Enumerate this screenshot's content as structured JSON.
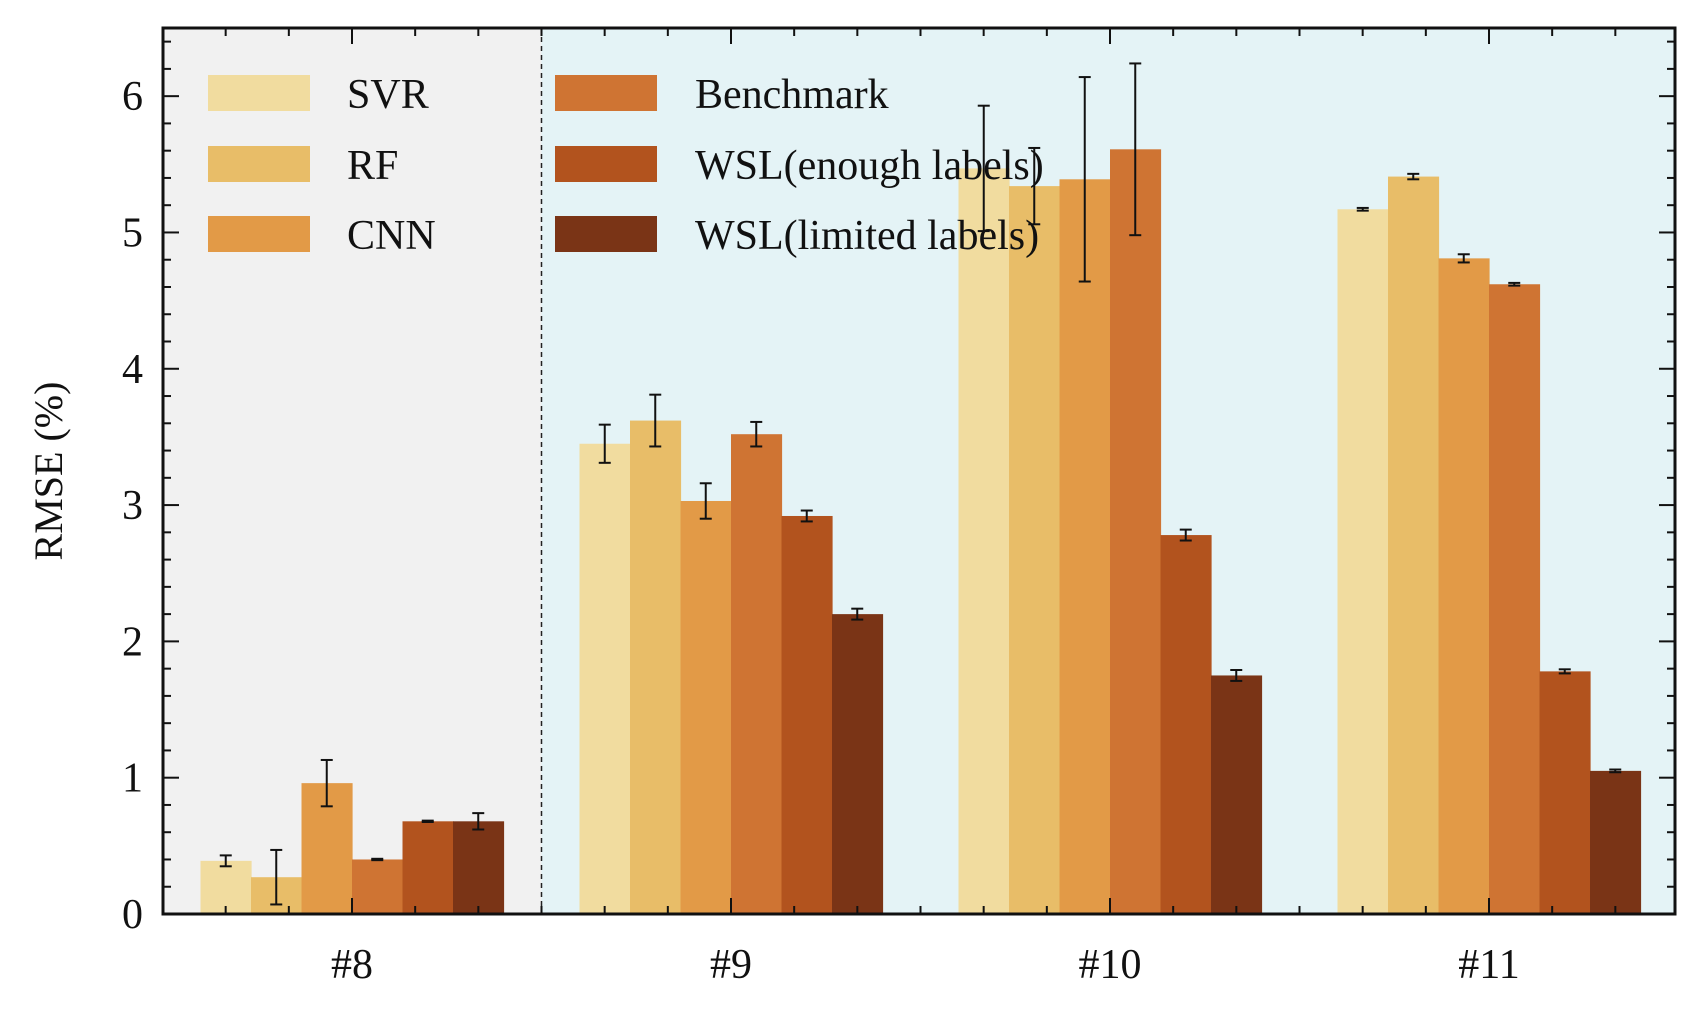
{
  "chart_data": {
    "type": "bar",
    "ylabel": "RMSE (%)",
    "ylim": [
      0,
      6.5
    ],
    "yticks": [
      "0",
      "1",
      "2",
      "3",
      "4",
      "5",
      "6"
    ],
    "categories": [
      "#8",
      "#9",
      "#10",
      "#11"
    ],
    "series": [
      {
        "name": "SVR",
        "color": "#f1dc9f",
        "values": [
          0.39,
          3.45,
          5.47,
          5.17
        ],
        "errors": [
          0.04,
          0.14,
          0.46,
          0.01
        ]
      },
      {
        "name": "RF",
        "color": "#e8bd68",
        "values": [
          0.27,
          3.62,
          5.34,
          5.41
        ],
        "errors": [
          0.2,
          0.19,
          0.28,
          0.02
        ]
      },
      {
        "name": "CNN",
        "color": "#e29a47",
        "values": [
          0.96,
          3.03,
          5.39,
          4.81
        ],
        "errors": [
          0.17,
          0.13,
          0.75,
          0.03
        ]
      },
      {
        "name": "Benchmark",
        "color": "#cf7433",
        "values": [
          0.4,
          3.52,
          5.61,
          4.62
        ],
        "errors": [
          0.005,
          0.09,
          0.63,
          0.01
        ]
      },
      {
        "name": "WSL(enough labels)",
        "color": "#b2531e",
        "values": [
          0.68,
          2.92,
          2.78,
          1.78
        ],
        "errors": [
          0.005,
          0.04,
          0.04,
          0.015
        ]
      },
      {
        "name": "WSL(limited labels)",
        "color": "#7a3416",
        "values": [
          0.68,
          2.2,
          1.75,
          1.05
        ],
        "errors": [
          0.06,
          0.04,
          0.04,
          0.01
        ]
      }
    ],
    "regions": [
      {
        "categories": [
          "#8"
        ],
        "color": "#f1f1f1"
      },
      {
        "categories": [
          "#9",
          "#10",
          "#11"
        ],
        "color": "#e4f3f6"
      }
    ],
    "grid": false,
    "legend_position": "top-left, two columns"
  }
}
